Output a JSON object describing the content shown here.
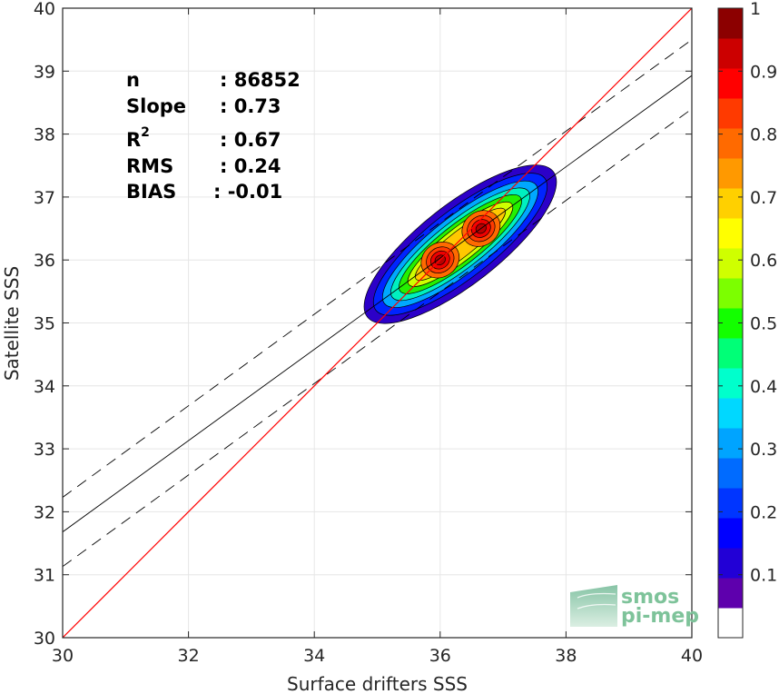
{
  "chart_data": {
    "type": "scatter",
    "subtype": "density-contour",
    "xlabel": "Surface drifters SSS",
    "ylabel": "Satellite SSS",
    "xlim": [
      30,
      40
    ],
    "ylim": [
      30,
      40
    ],
    "xticks": [
      "30",
      "32",
      "34",
      "36",
      "38",
      "40"
    ],
    "yticks": [
      "30",
      "31",
      "32",
      "33",
      "34",
      "35",
      "36",
      "37",
      "38",
      "39",
      "40"
    ],
    "grid": true,
    "stats": [
      {
        "label": "n",
        "value": ": 86852"
      },
      {
        "label": "Slope",
        "value": ": 0.73"
      },
      {
        "label": "R",
        "sup": "2",
        "value": ": 0.67"
      },
      {
        "label": "RMS",
        "value": ": 0.24"
      },
      {
        "label": "BIAS",
        "value": ": -0.01"
      }
    ],
    "identity_line": {
      "from": [
        30,
        30
      ],
      "to": [
        40,
        40
      ],
      "color": "#ff0000"
    },
    "regression_line": {
      "slope": 0.73,
      "from": [
        30,
        31.68
      ],
      "to": [
        40,
        38.93
      ],
      "color": "#000000"
    },
    "regression_bounds": [
      {
        "from": [
          30,
          32.23
        ],
        "to": [
          40,
          39.5
        ],
        "style": "dashed"
      },
      {
        "from": [
          30,
          31.13
        ],
        "to": [
          40,
          38.4
        ],
        "style": "dashed"
      }
    ],
    "density_peaks": [
      {
        "x": 36.0,
        "y": 36.0,
        "level": 1.0
      },
      {
        "x": 36.65,
        "y": 36.5,
        "level": 1.0
      }
    ],
    "colorbar": {
      "ticks": [
        "0.1",
        "0.2",
        "0.3",
        "0.4",
        "0.5",
        "0.6",
        "0.7",
        "0.8",
        "0.9",
        "1"
      ],
      "range": [
        0,
        1
      ],
      "colors": [
        "#ffffff",
        "#5e00ad",
        "#2200d6",
        "#0000ff",
        "#0035ff",
        "#006bff",
        "#00a4ff",
        "#00d8ff",
        "#00ffcc",
        "#00ff77",
        "#13ff00",
        "#7cff00",
        "#cfff00",
        "#ffff00",
        "#ffd000",
        "#ff9900",
        "#ff6a00",
        "#ff3a00",
        "#ff0000",
        "#cc0000",
        "#8c0000"
      ]
    }
  },
  "logo": {
    "line1": "smos",
    "line2": "pi-mep"
  }
}
